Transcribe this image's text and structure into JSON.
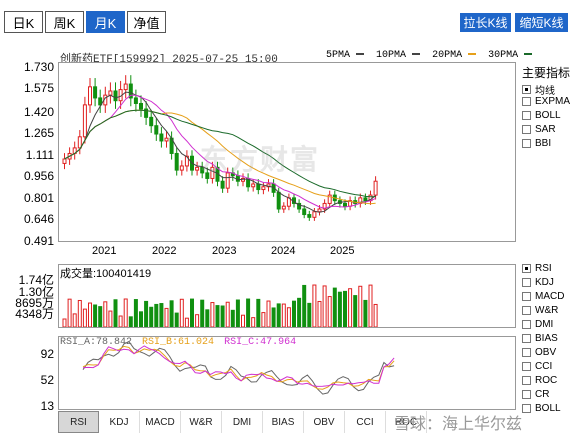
{
  "period_tabs": [
    {
      "label": "日K",
      "active": false
    },
    {
      "label": "周K",
      "active": false
    },
    {
      "label": "月K",
      "active": true
    },
    {
      "label": "净值",
      "active": false
    }
  ],
  "toolbar": {
    "stretch_label": "拉长K线",
    "shorten_label": "缩短K线"
  },
  "info": {
    "title": "创新药ETF[159992] 2025-07-25 15:00"
  },
  "ma_legend": [
    {
      "label": "5PMA",
      "color": "#444444"
    },
    {
      "label": "10PMA",
      "color": "#444444"
    },
    {
      "label": "20PMA",
      "color": "#e6a01a"
    },
    {
      "label": "30PMA",
      "color": "#d030d0"
    }
  ],
  "price_axis": [
    "1.730",
    "1.575",
    "1.420",
    "1.265",
    "1.111",
    "0.956",
    "0.801",
    "0.646",
    "0.491"
  ],
  "year_labels": [
    "2021",
    "2022",
    "2023",
    "2024",
    "2025"
  ],
  "volume": {
    "label": "成交量:100401419",
    "axis": [
      "1.74亿",
      "1.30亿",
      "8695万",
      "4348万"
    ]
  },
  "rsi": {
    "a_label": "RSI_A:78.842",
    "b_label": "RSI_B:61.024",
    "c_label": "RSI_C:47.964",
    "axis": [
      "92",
      "52",
      "13"
    ]
  },
  "sidebar": {
    "title": "主要指标",
    "main_items": [
      {
        "label": "均线",
        "checked": true
      },
      {
        "label": "EXPMA",
        "checked": false
      },
      {
        "label": "BOLL",
        "checked": false
      },
      {
        "label": "SAR",
        "checked": false
      },
      {
        "label": "BBI",
        "checked": false
      }
    ],
    "sub_items": [
      {
        "label": "RSI",
        "checked": true
      },
      {
        "label": "KDJ",
        "checked": false
      },
      {
        "label": "MACD",
        "checked": false
      },
      {
        "label": "W&R",
        "checked": false
      },
      {
        "label": "DMI",
        "checked": false
      },
      {
        "label": "BIAS",
        "checked": false
      },
      {
        "label": "OBV",
        "checked": false
      },
      {
        "label": "CCI",
        "checked": false
      },
      {
        "label": "ROC",
        "checked": false
      },
      {
        "label": "CR",
        "checked": false
      },
      {
        "label": "BOLL",
        "checked": false
      }
    ]
  },
  "bottom_tabs": [
    "RSI",
    "KDJ",
    "MACD",
    "W&R",
    "DMI",
    "BIAS",
    "OBV",
    "CCI",
    "ROC"
  ],
  "watermarks": {
    "center": "东方财富",
    "bottom": "雪球：海上华尔兹"
  },
  "colors": {
    "up": "#e02020",
    "down": "#109010",
    "accent": "#1f66c9",
    "ma_gray": "#444444",
    "ma_orange": "#e6a01a",
    "ma_purple": "#d030d0",
    "ma_green": "#1a6a2a"
  },
  "chart_data": {
    "type": "candlestick",
    "symbol": "159992",
    "candles_close": [
      1.06,
      1.1,
      1.14,
      1.22,
      1.45,
      1.58,
      1.5,
      1.45,
      1.52,
      1.55,
      1.48,
      1.56,
      1.6,
      1.5,
      1.46,
      1.42,
      1.36,
      1.3,
      1.24,
      1.19,
      1.21,
      1.1,
      0.98,
      1.01,
      1.08,
      0.98,
      1.0,
      0.96,
      0.92,
      1.0,
      0.9,
      0.85,
      0.96,
      0.94,
      0.9,
      0.92,
      0.86,
      0.88,
      0.84,
      0.86,
      0.88,
      0.82,
      0.7,
      0.72,
      0.78,
      0.74,
      0.7,
      0.66,
      0.64,
      0.68,
      0.7,
      0.74,
      0.8,
      0.76,
      0.74,
      0.72,
      0.76,
      0.74,
      0.78,
      0.76,
      0.8,
      0.9
    ]
  }
}
